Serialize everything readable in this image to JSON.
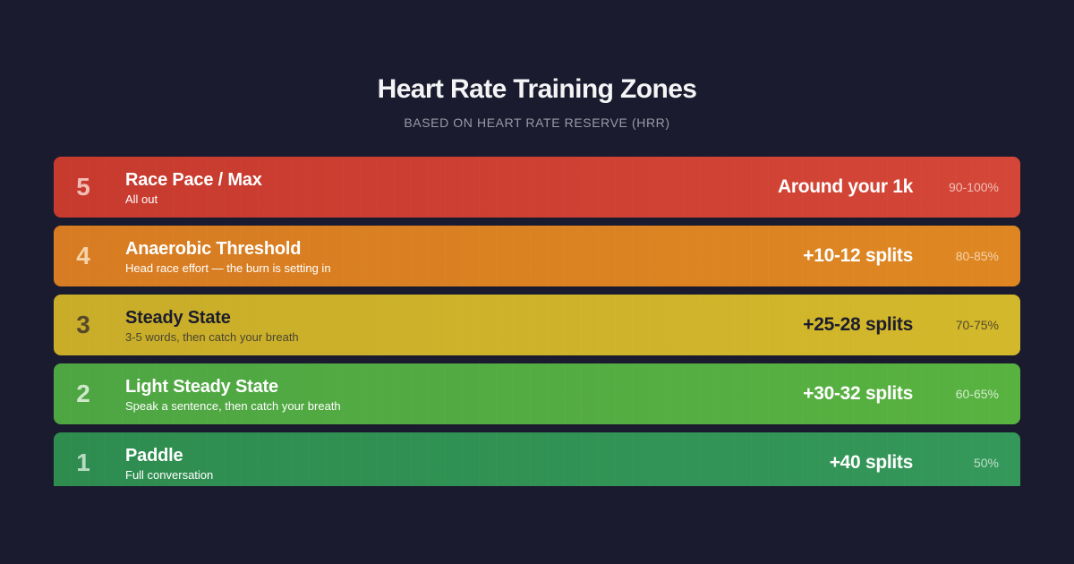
{
  "header": {
    "title": "Heart Rate Training Zones",
    "subtitle": "BASED ON HEART RATE RESERVE (HRR)"
  },
  "zones": [
    {
      "number": "5",
      "name": "Race Pace / Max",
      "description": "All out",
      "splits": "Around your 1k",
      "hrr": "90-100%",
      "color": "#d04236"
    },
    {
      "number": "4",
      "name": "Anaerobic Threshold",
      "description": "Head race effort — the burn is setting in",
      "splits": "+10-12 splits",
      "hrr": "80-85%",
      "color": "#db8222"
    },
    {
      "number": "3",
      "name": "Steady State",
      "description": "3-5 words, then catch your breath",
      "splits": "+25-28 splits",
      "hrr": "70-75%",
      "color": "#ceb22a"
    },
    {
      "number": "2",
      "name": "Light Steady State",
      "description": "Speak a sentence, then catch your breath",
      "splits": "+30-32 splits",
      "hrr": "60-65%",
      "color": "#53ac42"
    },
    {
      "number": "1",
      "name": "Paddle",
      "description": "Full conversation",
      "splits": "+40 splits",
      "hrr": "50%",
      "color": "#319353"
    }
  ],
  "colors": {
    "background": "#1a1b2e",
    "title": "#f4f4f6",
    "subtitle": "#9a9ba6"
  }
}
